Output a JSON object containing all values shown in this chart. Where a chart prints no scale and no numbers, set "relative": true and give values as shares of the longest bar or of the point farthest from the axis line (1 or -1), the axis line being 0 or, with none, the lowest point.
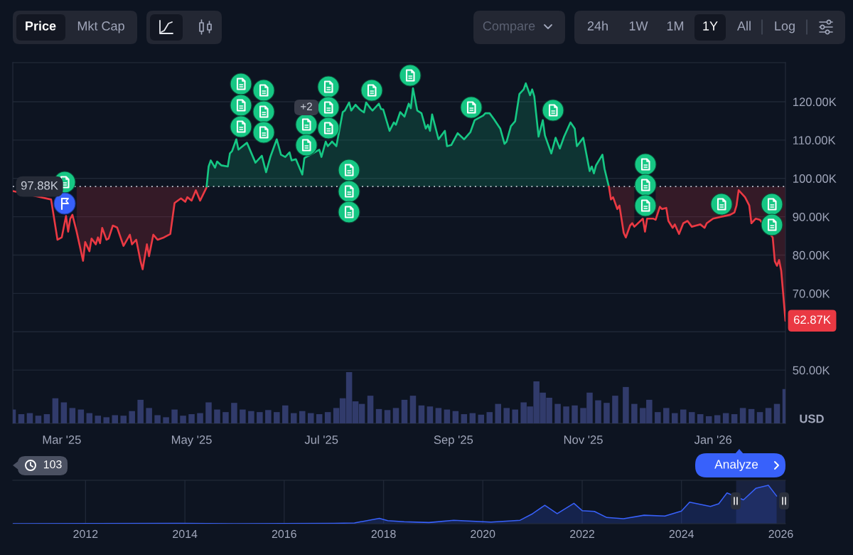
{
  "chart_data": [
    {
      "type": "other",
      "annotations": [
        "Price",
        "Mkt Cap",
        "Compare",
        "24h",
        "1W",
        "1M",
        "1Y",
        "All",
        "Log"
      ]
    },
    {
      "type": "line",
      "series": [
        {
          "color": "#ea3943",
          "x": [
            "2025-02-06",
            "2025-02-24",
            "2025-02-27",
            "2025-03-01",
            "2025-03-03",
            "2025-03-04",
            "2025-03-05",
            "2025-03-06",
            "2025-03-08",
            "2025-03-11",
            "2025-03-12",
            "2025-03-14",
            "2025-03-15",
            "2025-03-17",
            "2025-03-18",
            "2025-03-19",
            "2025-03-20",
            "2025-03-22",
            "2025-03-23",
            "2025-03-25",
            "2025-03-27",
            "2025-03-30",
            "2025-04-02",
            "2025-04-03",
            "2025-04-05",
            "2025-04-07",
            "2025-04-08",
            "2025-04-10",
            "2025-04-11",
            "2025-04-13",
            "2025-04-15",
            "2025-04-18",
            "2025-04-21",
            "2025-04-23",
            "2025-04-26",
            "2025-04-28",
            "2025-04-29",
            "2025-05-01",
            "2025-05-03",
            "2025-05-05",
            "2025-05-08",
            "2025-05-08T01:00"
          ],
          "values": [
            96.7,
            94.5,
            84.0,
            84.6,
            90.2,
            86.1,
            89.5,
            90.5,
            86.1,
            78.5,
            83.4,
            81.0,
            84.3,
            82.8,
            84.6,
            83.1,
            87.1,
            84.0,
            84.3,
            87.7,
            87.2,
            82.4,
            85.3,
            82.8,
            84.0,
            78.4,
            76.3,
            82.8,
            79.7,
            85.3,
            84.0,
            84.6,
            85.5,
            93.6,
            94.8,
            93.9,
            95.1,
            94.2,
            96.9,
            94.2,
            97.6,
            97.88
          ],
          "lower": [
            null,
            null,
            null,
            null,
            null,
            null,
            null,
            null,
            86.1,
            78.5,
            83.4,
            81.0,
            84.3,
            82.8,
            84.6,
            83.1,
            87.1,
            84.0,
            84.3,
            87.7,
            87.2,
            82.4,
            85.3,
            82.8,
            84.0,
            78.4,
            76.3,
            82.8,
            79.7,
            85.3,
            84.0,
            84.6,
            85.5,
            93.6,
            94.8,
            93.9,
            95.1,
            94.2,
            96.9,
            94.2,
            97.6,
            97.88
          ],
          "upper": [
            null,
            null,
            null,
            null,
            null,
            null,
            null,
            null,
            97.88,
            97.88,
            97.88,
            97.88,
            97.88,
            97.88,
            97.88,
            97.88,
            97.88,
            97.88,
            97.88,
            97.88,
            97.88,
            97.88,
            97.88,
            97.88,
            97.88,
            97.88,
            97.88,
            97.88,
            97.88,
            97.88,
            97.88,
            97.88,
            97.88,
            97.88,
            97.88,
            97.88,
            97.88,
            97.88,
            97.88,
            97.88,
            97.88,
            97.88
          ]
        },
        {
          "color": "#16c784",
          "x": [
            "2025-05-08T01:00",
            "2025-05-09",
            "2025-05-10",
            "2025-05-12",
            "2025-05-13",
            "2025-05-15",
            "2025-05-18",
            "2025-05-19",
            "2025-05-20",
            "2025-05-22",
            "2025-05-23",
            "2025-05-27",
            "2025-05-31",
            "2025-06-03",
            "2025-06-05",
            "2025-06-07",
            "2025-06-10",
            "2025-06-12",
            "2025-06-14",
            "2025-06-16",
            "2025-06-17",
            "2025-06-19",
            "2025-06-22",
            "2025-06-23",
            "2025-06-30",
            "2025-07-01",
            "2025-07-03",
            "2025-07-04",
            "2025-07-06",
            "2025-07-08",
            "2025-07-11",
            "2025-07-12",
            "2025-07-14",
            "2025-07-15",
            "2025-07-17",
            "2025-07-19",
            "2025-07-21",
            "2025-07-22",
            "2025-07-24",
            "2025-07-25",
            "2025-07-28",
            "2025-07-29",
            "2025-07-30",
            "2025-08-02",
            "2025-08-04",
            "2025-08-05",
            "2025-08-07",
            "2025-08-09",
            "2025-08-11",
            "2025-08-12",
            "2025-08-13",
            "2025-08-15",
            "2025-08-17",
            "2025-08-19",
            "2025-08-20",
            "2025-08-21",
            "2025-08-22",
            "2025-08-25",
            "2025-08-28",
            "2025-08-29",
            "2025-08-31",
            "2025-09-03",
            "2025-09-06",
            "2025-09-09",
            "2025-09-11",
            "2025-09-13",
            "2025-09-15",
            "2025-09-16",
            "2025-09-18",
            "2025-09-20",
            "2025-09-23",
            "2025-09-25",
            "2025-09-26",
            "2025-09-28",
            "2025-09-30",
            "2025-10-02",
            "2025-10-04",
            "2025-10-05",
            "2025-10-07",
            "2025-10-08",
            "2025-10-09",
            "2025-10-11",
            "2025-10-13",
            "2025-10-14",
            "2025-10-17",
            "2025-10-19",
            "2025-10-21",
            "2025-10-23",
            "2025-10-26",
            "2025-10-28",
            "2025-10-29",
            "2025-11-01",
            "2025-11-04",
            "2025-11-05",
            "2025-11-06",
            "2025-11-07",
            "2025-11-10",
            "2025-11-11",
            "2025-11-13",
            "2025-11-13T01:00"
          ],
          "values": [
            97.88,
            103.1,
            104.7,
            102.8,
            104.4,
            103.4,
            103.1,
            106.5,
            107.1,
            110.2,
            107.5,
            109.3,
            104.1,
            105.9,
            101.6,
            105.6,
            110.2,
            106.2,
            105.6,
            106.8,
            104.7,
            105.0,
            101.0,
            105.3,
            107.5,
            105.6,
            109.6,
            108.4,
            109.6,
            108.4,
            117.3,
            117.7,
            119.8,
            117.7,
            119.2,
            118.0,
            117.2,
            119.8,
            118.3,
            117.7,
            119.5,
            118.1,
            118.0,
            112.4,
            114.6,
            114.0,
            117.3,
            116.1,
            119.5,
            118.3,
            123.5,
            117.7,
            117.0,
            113.0,
            114.0,
            112.4,
            116.7,
            110.2,
            112.4,
            108.4,
            108.7,
            111.8,
            110.2,
            112.1,
            115.2,
            115.8,
            116.4,
            117.0,
            117.0,
            115.5,
            113.0,
            109.0,
            109.6,
            113.6,
            114.9,
            122.0,
            123.2,
            124.8,
            121.7,
            123.2,
            121.4,
            110.9,
            115.2,
            111.2,
            106.5,
            110.6,
            107.8,
            110.9,
            114.6,
            113.0,
            108.4,
            110.6,
            101.9,
            103.1,
            101.3,
            103.4,
            106.2,
            102.5,
            97.9,
            97.88
          ],
          "lower": [
            97.88,
            97.88,
            97.88,
            97.88,
            97.88,
            97.88,
            97.88,
            97.88,
            97.88,
            97.88,
            97.88,
            97.88,
            97.88,
            97.88,
            97.88,
            97.88,
            97.88,
            97.88,
            97.88,
            97.88,
            97.88,
            97.88,
            97.88,
            97.88,
            97.88,
            97.88,
            97.88,
            97.88,
            97.88,
            97.88,
            97.88,
            97.88,
            97.88,
            97.88,
            97.88,
            97.88,
            97.88,
            97.88,
            97.88,
            97.88,
            97.88,
            97.88,
            97.88,
            97.88,
            97.88,
            97.88,
            97.88,
            97.88,
            97.88,
            97.88,
            97.88,
            97.88,
            97.88,
            97.88,
            97.88,
            97.88,
            97.88,
            97.88,
            97.88,
            97.88,
            97.88,
            97.88,
            97.88,
            97.88,
            97.88,
            97.88,
            97.88,
            97.88,
            97.88,
            97.88,
            97.88,
            97.88,
            97.88,
            97.88,
            97.88,
            97.88,
            97.88,
            97.88,
            97.88,
            97.88,
            97.88,
            97.88,
            97.88,
            97.88,
            97.88,
            97.88,
            97.88,
            97.88,
            97.88,
            97.88,
            97.88,
            97.88,
            97.88,
            97.88,
            97.88,
            97.88,
            97.88,
            97.88,
            97.88,
            97.88
          ],
          "upper": [
            97.88,
            103.1,
            104.7,
            102.8,
            104.4,
            103.4,
            103.1,
            106.5,
            107.1,
            110.2,
            107.5,
            109.3,
            104.1,
            105.9,
            101.6,
            105.6,
            110.2,
            106.2,
            105.6,
            106.8,
            104.7,
            105.0,
            101.0,
            105.3,
            107.5,
            105.6,
            109.6,
            108.4,
            109.6,
            108.4,
            117.3,
            117.7,
            119.8,
            117.7,
            119.2,
            118.0,
            117.2,
            119.8,
            118.3,
            117.7,
            119.5,
            118.1,
            118.0,
            112.4,
            114.6,
            114.0,
            117.3,
            116.1,
            119.5,
            118.3,
            123.5,
            117.7,
            117.0,
            113.0,
            114.0,
            112.4,
            116.7,
            110.2,
            112.4,
            108.4,
            108.7,
            111.8,
            110.2,
            112.1,
            115.2,
            115.8,
            116.4,
            117.0,
            117.0,
            115.5,
            113.0,
            109.0,
            109.6,
            113.6,
            114.9,
            122.0,
            123.2,
            124.8,
            121.7,
            123.2,
            121.4,
            110.9,
            115.2,
            111.2,
            106.5,
            110.6,
            107.8,
            110.9,
            114.6,
            113.0,
            108.4,
            110.6,
            101.9,
            103.1,
            101.3,
            103.4,
            106.2,
            102.5,
            97.9,
            97.88
          ]
        },
        {
          "color": "#ea3943",
          "x": [
            "2025-11-13T01:00",
            "2025-11-14",
            "2025-11-15",
            "2025-11-17",
            "2025-11-18",
            "2025-11-20",
            "2025-11-21",
            "2025-11-23",
            "2025-11-24",
            "2025-11-25",
            "2025-11-29",
            "2025-11-30",
            "2025-12-01",
            "2025-12-04",
            "2025-12-05",
            "2025-12-07",
            "2025-12-08",
            "2025-12-10",
            "2025-12-11",
            "2025-12-13",
            "2025-12-14",
            "2025-12-16",
            "2025-12-18",
            "2025-12-20",
            "2025-12-22",
            "2025-12-24",
            "2025-12-26",
            "2025-12-28",
            "2025-12-29",
            "2026-01-01",
            "2026-01-09",
            "2026-01-11",
            "2026-01-12",
            "2026-01-13",
            "2026-01-15",
            "2026-01-16",
            "2026-01-18",
            "2026-01-19",
            "2026-01-21",
            "2026-01-23",
            "2026-01-29",
            "2026-01-30",
            "2026-01-31",
            "2026-02-01",
            "2026-02-02",
            "2026-02-04"
          ],
          "values": [
            97.88,
            94.5,
            95.1,
            92.0,
            92.9,
            85.8,
            84.6,
            87.7,
            88.3,
            87.4,
            89.5,
            86.1,
            89.5,
            89.5,
            89.2,
            92.6,
            92.0,
            92.3,
            88.9,
            87.1,
            88.0,
            85.5,
            88.3,
            88.9,
            87.4,
            87.7,
            88.0,
            87.1,
            88.3,
            89.5,
            90.5,
            91.1,
            92.9,
            96.9,
            95.7,
            95.1,
            92.9,
            88.3,
            89.5,
            89.2,
            84.6,
            78.4,
            77.2,
            78.7,
            75.9,
            62.87
          ],
          "lower": [
            97.88,
            94.5,
            95.1,
            92.0,
            92.9,
            85.8,
            84.6,
            87.7,
            88.3,
            87.4,
            null,
            null,
            null,
            null,
            89.2,
            92.6,
            92.0,
            92.3,
            88.9,
            87.1,
            88.0,
            85.5,
            88.3,
            88.9,
            87.4,
            87.7,
            88.0,
            87.1,
            88.3,
            89.5,
            90.5,
            91.1,
            92.9,
            96.9,
            95.7,
            95.1,
            92.9,
            88.3,
            89.5,
            89.2,
            84.6,
            78.4,
            77.2,
            78.7,
            75.9,
            62.87
          ],
          "upper": [
            97.88,
            97.88,
            97.88,
            97.88,
            97.88,
            97.88,
            97.88,
            97.88,
            97.88,
            97.88,
            null,
            null,
            null,
            null,
            97.88,
            97.88,
            97.88,
            97.88,
            97.88,
            97.88,
            97.88,
            97.88,
            97.88,
            97.88,
            97.88,
            97.88,
            97.88,
            97.88,
            97.88,
            97.88,
            97.88,
            97.88,
            97.88,
            97.88,
            97.88,
            97.88,
            97.88,
            97.88,
            97.88,
            97.88,
            97.88,
            97.88,
            97.88,
            97.88,
            97.88,
            97.88
          ],
          "value_labels": [
            null,
            null,
            null,
            null,
            null,
            null,
            null,
            null,
            null,
            null,
            null,
            null,
            null,
            null,
            null,
            null,
            null,
            null,
            null,
            null,
            null,
            null,
            null,
            null,
            null,
            null,
            null,
            null,
            null,
            null,
            null,
            null,
            null,
            null,
            null,
            null,
            null,
            null,
            null,
            null,
            null,
            null,
            null,
            null,
            null,
            "62.87K"
          ]
        }
      ],
      "xlim": [
        "2025-02-06",
        "2026-02-04"
      ],
      "ylim": [
        36.1,
        130.2
      ],
      "xticks": [
        {
          "value": "2025-03-01",
          "label": "Mar '25"
        },
        {
          "value": "2025-05-01",
          "label": "May '25"
        },
        {
          "value": "2025-07-01",
          "label": "Jul '25"
        },
        {
          "value": "2025-09-01",
          "label": "Sep '25"
        },
        {
          "value": "2025-11-01",
          "label": "Nov '25"
        },
        {
          "value": "2026-01-01",
          "label": "Jan '26"
        }
      ],
      "yticks": [
        {
          "value": 50,
          "label": "50.00K"
        },
        {
          "value": 60,
          "label": null
        },
        {
          "value": 70,
          "label": "70.00K"
        },
        {
          "value": 80,
          "label": "80.00K"
        },
        {
          "value": 90,
          "label": "90.00K"
        },
        {
          "value": 100,
          "label": "100.00K"
        },
        {
          "value": 110,
          "label": "110.00K"
        },
        {
          "value": 120,
          "label": "120.00K"
        }
      ],
      "ylabel": "USD",
      "grid": "y",
      "ref_lines": [
        {
          "axis": "y",
          "value": 97.88,
          "label": "97.88K",
          "color": "#c4c9d4",
          "line_style": "dotted"
        }
      ],
      "annotations": [
        "+2"
      ]
    },
    {
      "type": "bar",
      "relative": true,
      "color": "#313b6b",
      "xlim": [
        "2025-02-06",
        "2026-02-04"
      ],
      "x": [
        "2025-02-06",
        "2025-02-10",
        "2025-02-14",
        "2025-02-18",
        "2025-02-22",
        "2025-02-26",
        "2025-03-02",
        "2025-03-06",
        "2025-03-10",
        "2025-03-14",
        "2025-03-18",
        "2025-03-22",
        "2025-03-26",
        "2025-03-30",
        "2025-04-03",
        "2025-04-07",
        "2025-04-11",
        "2025-04-15",
        "2025-04-19",
        "2025-04-23",
        "2025-04-27",
        "2025-05-01",
        "2025-05-05",
        "2025-05-09",
        "2025-05-13",
        "2025-05-17",
        "2025-05-21",
        "2025-05-25",
        "2025-05-29",
        "2025-06-02",
        "2025-06-06",
        "2025-06-10",
        "2025-06-14",
        "2025-06-18",
        "2025-06-22",
        "2025-06-26",
        "2025-06-30",
        "2025-07-04",
        "2025-07-08",
        "2025-07-11",
        "2025-07-14",
        "2025-07-17",
        "2025-07-20",
        "2025-07-24",
        "2025-07-28",
        "2025-08-01",
        "2025-08-05",
        "2025-08-09",
        "2025-08-13",
        "2025-08-17",
        "2025-08-21",
        "2025-08-25",
        "2025-08-29",
        "2025-09-02",
        "2025-09-06",
        "2025-09-10",
        "2025-09-14",
        "2025-09-18",
        "2025-09-22",
        "2025-09-26",
        "2025-09-30",
        "2025-10-04",
        "2025-10-07",
        "2025-10-10",
        "2025-10-13",
        "2025-10-16",
        "2025-10-20",
        "2025-10-24",
        "2025-10-28",
        "2025-11-01",
        "2025-11-04",
        "2025-11-08",
        "2025-11-12",
        "2025-11-16",
        "2025-11-21",
        "2025-11-25",
        "2025-11-29",
        "2025-12-02",
        "2025-12-06",
        "2025-12-10",
        "2025-12-14",
        "2025-12-18",
        "2025-12-22",
        "2025-12-26",
        "2025-12-30",
        "2026-01-03",
        "2026-01-07",
        "2026-01-11",
        "2026-01-15",
        "2026-01-19",
        "2026-01-23",
        "2026-01-27",
        "2026-01-31",
        "2026-02-04"
      ],
      "values": [
        0.27,
        0.18,
        0.2,
        0.15,
        0.18,
        0.49,
        0.41,
        0.3,
        0.27,
        0.2,
        0.15,
        0.12,
        0.16,
        0.15,
        0.24,
        0.46,
        0.3,
        0.16,
        0.12,
        0.27,
        0.15,
        0.18,
        0.2,
        0.41,
        0.27,
        0.22,
        0.4,
        0.27,
        0.24,
        0.22,
        0.26,
        0.22,
        0.35,
        0.2,
        0.24,
        0.2,
        0.18,
        0.22,
        0.3,
        0.49,
        1,
        0.43,
        0.38,
        0.54,
        0.28,
        0.26,
        0.3,
        0.46,
        0.54,
        0.35,
        0.33,
        0.3,
        0.27,
        0.24,
        0.18,
        0.2,
        0.17,
        0.22,
        0.38,
        0.3,
        0.27,
        0.41,
        0.33,
        0.82,
        0.6,
        0.5,
        0.38,
        0.33,
        0.35,
        0.3,
        0.6,
        0.45,
        0.4,
        0.54,
        0.71,
        0.38,
        0.3,
        0.46,
        0.22,
        0.3,
        0.2,
        0.27,
        0.22,
        0.18,
        0.14,
        0.16,
        0.2,
        0.18,
        0.3,
        0.28,
        0.22,
        0.3,
        0.38,
        0.67
      ]
    },
    {
      "type": "area",
      "relative": true,
      "color": "#3861fb",
      "grid": "x",
      "x": [
        "2010-07-15",
        "2013-11",
        "2015-01",
        "2017-01",
        "2017-06",
        "2017-12",
        "2018-02",
        "2018-06",
        "2018-12",
        "2019-06",
        "2020-03",
        "2020-10",
        "2021-01",
        "2021-04",
        "2021-07",
        "2021-11",
        "2022-01",
        "2022-04",
        "2022-07",
        "2022-11",
        "2023-04",
        "2023-09",
        "2024-01",
        "2024-03",
        "2024-08",
        "2024-10",
        "2024-12",
        "2025-04",
        "2025-07",
        "2025-10",
        "2025-12"
      ],
      "values": [
        0,
        0.01,
        0,
        0.01,
        0.02,
        0.14,
        0.08,
        0.05,
        0.03,
        0.09,
        0.04,
        0.09,
        0.26,
        0.48,
        0.26,
        0.53,
        0.34,
        0.32,
        0.16,
        0.13,
        0.22,
        0.2,
        0.33,
        0.56,
        0.45,
        0.52,
        0.8,
        0.62,
        0.92,
        1,
        0.72
      ],
      "xlim": [
        "2010-07-15",
        "2026-02-04"
      ],
      "xticks": [
        "2012",
        "2014",
        "2016",
        "2018",
        "2020",
        "2022",
        "2024",
        "2026"
      ],
      "bands": [
        {
          "axis": "x",
          "from": "2025-02-06",
          "to": "2026-02-04",
          "color": "#19223f"
        }
      ],
      "annotations": [
        "103",
        "Analyze"
      ]
    }
  ]
}
